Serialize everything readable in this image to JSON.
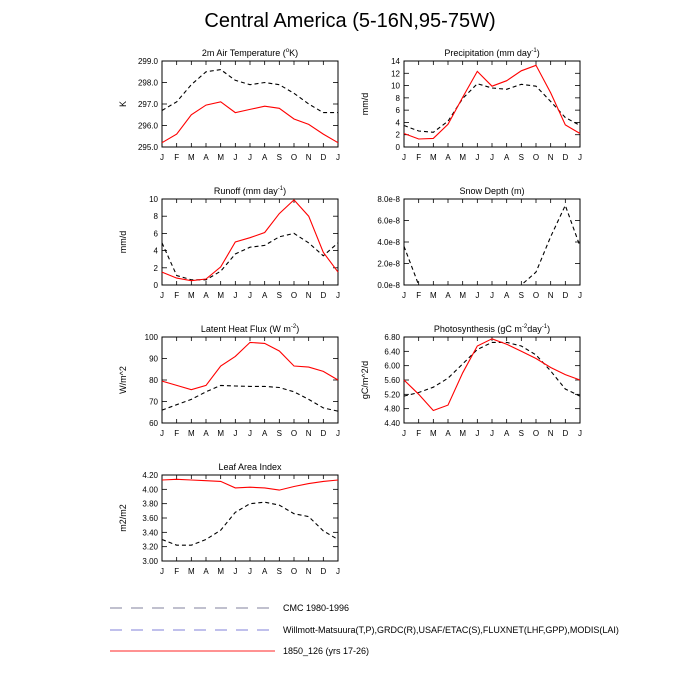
{
  "title": "Central America (5-16N,95-75W)",
  "months": [
    "J",
    "F",
    "M",
    "A",
    "M",
    "J",
    "J",
    "A",
    "S",
    "O",
    "N",
    "D",
    "J"
  ],
  "legend": [
    {
      "label": "CMC 1980-1996",
      "color": "#9a9ab0",
      "dash": "long"
    },
    {
      "label": "Willmott-Matsuura(T,P),GRDC(R),USAF/ETAC(S),FLUXNET(LHF,GPP),MODIS(LAI)",
      "color": "#9a9ae0",
      "dash": "long"
    },
    {
      "label": "1850_126 (yrs 17-26)",
      "color": "#ff5050",
      "dash": "solid"
    }
  ],
  "chart_data": [
    {
      "type": "line",
      "title_main": "2m Air Temperature (",
      "title_sup": "o",
      "title_end": "K)",
      "ylabel": "K",
      "ylim": [
        295.0,
        299.0
      ],
      "yticks": [
        295.0,
        296.0,
        297.0,
        298.0,
        299.0
      ],
      "ytick_labels": [
        "295.0",
        "296.0",
        "297.0",
        "298.0",
        "299.0"
      ],
      "series": [
        {
          "style": "dashed",
          "values": [
            296.7,
            297.1,
            297.9,
            298.5,
            298.6,
            298.1,
            297.9,
            298.0,
            297.9,
            297.5,
            297.0,
            296.6,
            296.6
          ]
        },
        {
          "style": "solid",
          "values": [
            295.2,
            295.6,
            296.5,
            296.95,
            297.1,
            296.6,
            296.75,
            296.9,
            296.8,
            296.3,
            296.05,
            295.6,
            295.2
          ]
        }
      ]
    },
    {
      "type": "line",
      "title_main": "Precipitation (mm day",
      "title_sup": "-1",
      "title_end": ")",
      "ylabel": "mm/d",
      "ylim": [
        0,
        14
      ],
      "yticks": [
        0,
        2,
        4,
        6,
        8,
        10,
        12,
        14
      ],
      "ytick_labels": [
        "0",
        "2",
        "4",
        "6",
        "8",
        "10",
        "12",
        "14"
      ],
      "series": [
        {
          "style": "dashed",
          "values": [
            3.5,
            2.6,
            2.4,
            4.2,
            7.9,
            10.3,
            9.6,
            9.4,
            10.2,
            9.9,
            7.4,
            4.8,
            3.5
          ]
        },
        {
          "style": "solid",
          "values": [
            2.2,
            1.3,
            1.4,
            3.7,
            8.1,
            12.3,
            9.9,
            10.8,
            12.4,
            13.3,
            8.8,
            3.6,
            2.2
          ]
        }
      ]
    },
    {
      "type": "line",
      "title_main": "Runoff (mm day",
      "title_sup": "-1",
      "title_end": ")",
      "ylabel": "mm/d",
      "ylim": [
        0,
        10
      ],
      "yticks": [
        0,
        2,
        4,
        6,
        8,
        10
      ],
      "ytick_labels": [
        "0",
        "2",
        "4",
        "6",
        "8",
        "10"
      ],
      "series": [
        {
          "style": "dashed",
          "values": [
            4.9,
            1.1,
            0.6,
            0.6,
            1.6,
            3.6,
            4.4,
            4.6,
            5.6,
            6.0,
            4.9,
            3.4,
            4.9
          ]
        },
        {
          "style": "solid",
          "values": [
            1.5,
            0.8,
            0.5,
            0.7,
            2.1,
            5.0,
            5.5,
            6.1,
            8.3,
            9.9,
            8.0,
            3.8,
            1.5
          ]
        }
      ]
    },
    {
      "type": "line",
      "title_main": "Snow Depth (m)",
      "title_sup": "",
      "title_end": "",
      "ylabel": "",
      "ylim": [
        0,
        8e-08
      ],
      "yticks": [
        0,
        2e-08,
        4e-08,
        6e-08,
        8e-08
      ],
      "ytick_labels": [
        "0.0e-8",
        "2.0e-8",
        "4.0e-8",
        "6.0e-8",
        "8.0e-8"
      ],
      "series": [
        {
          "style": "dashed",
          "values": [
            3.6e-08,
            0,
            0,
            0,
            0,
            0,
            0,
            0,
            0,
            1.2e-08,
            4.5e-08,
            7.4e-08,
            3.6e-08
          ]
        }
      ]
    },
    {
      "type": "line",
      "title_main": "Latent Heat Flux (W m",
      "title_sup": "-2",
      "title_end": ")",
      "ylabel": "W/m^2",
      "ylim": [
        60,
        100
      ],
      "yticks": [
        60,
        70,
        80,
        90,
        100
      ],
      "ytick_labels": [
        "60",
        "70",
        "80",
        "90",
        "100"
      ],
      "series": [
        {
          "style": "dashed",
          "values": [
            66,
            68.5,
            71,
            74.5,
            77.5,
            77.2,
            77,
            77,
            76.5,
            74.5,
            71,
            67,
            65.5
          ]
        },
        {
          "style": "solid",
          "values": [
            79.5,
            77.5,
            75.5,
            77.5,
            86.5,
            91,
            97.5,
            97,
            93.5,
            86.5,
            86,
            84,
            80
          ]
        }
      ]
    },
    {
      "type": "line",
      "title_main": "Photosynthesis (gC m",
      "title_sup": "-2",
      "title_end": "day",
      "title_sup2": "-1",
      "title_end2": ")",
      "ylabel": "gC/m^2/d",
      "ylim": [
        4.4,
        6.8
      ],
      "yticks": [
        4.4,
        4.8,
        5.2,
        5.6,
        6.0,
        6.4,
        6.8
      ],
      "ytick_labels": [
        "4.40",
        "4.80",
        "5.20",
        "5.60",
        "6.00",
        "6.40",
        "6.80"
      ],
      "series": [
        {
          "style": "dashed",
          "values": [
            5.15,
            5.25,
            5.4,
            5.65,
            6.05,
            6.45,
            6.65,
            6.65,
            6.55,
            6.3,
            5.85,
            5.35,
            5.15
          ]
        },
        {
          "style": "solid",
          "values": [
            5.6,
            5.2,
            4.75,
            4.9,
            5.8,
            6.55,
            6.75,
            6.6,
            6.4,
            6.2,
            5.95,
            5.75,
            5.6
          ]
        }
      ]
    },
    {
      "type": "line",
      "title_main": "Leaf Area Index",
      "title_sup": "",
      "title_end": "",
      "ylabel": "m2/m2",
      "ylim": [
        3.0,
        4.2
      ],
      "yticks": [
        3.0,
        3.2,
        3.4,
        3.6,
        3.8,
        4.0,
        4.2
      ],
      "ytick_labels": [
        "3.00",
        "3.20",
        "3.40",
        "3.60",
        "3.80",
        "4.00",
        "4.20"
      ],
      "series": [
        {
          "style": "dashed",
          "values": [
            3.3,
            3.22,
            3.22,
            3.3,
            3.43,
            3.68,
            3.8,
            3.82,
            3.78,
            3.66,
            3.62,
            3.42,
            3.3
          ]
        },
        {
          "style": "solid",
          "values": [
            4.13,
            4.14,
            4.13,
            4.12,
            4.11,
            4.02,
            4.03,
            4.02,
            3.99,
            4.04,
            4.08,
            4.11,
            4.13
          ]
        }
      ]
    }
  ]
}
